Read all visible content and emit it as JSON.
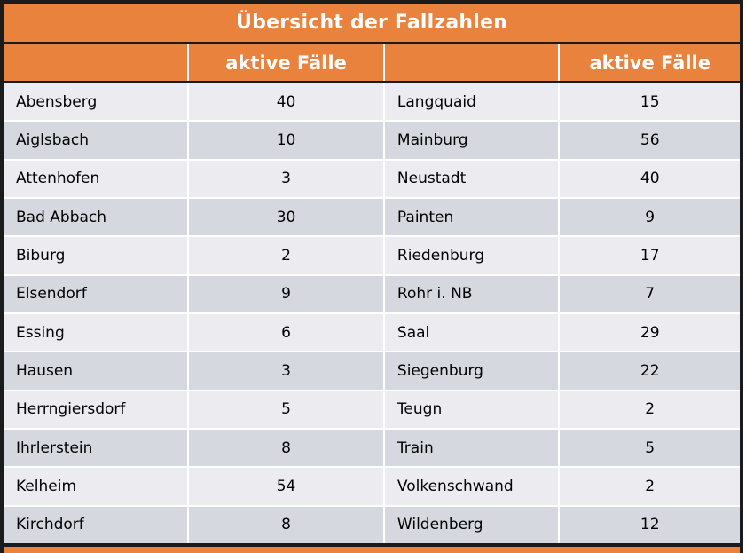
{
  "title": "Übersicht der Fallzahlen",
  "header": {
    "col1_label": "",
    "col2_label": "aktive Fälle",
    "col3_label": "",
    "col4_label": "aktive Fälle"
  },
  "chart_data": {
    "type": "table",
    "title": "Übersicht der Fallzahlen",
    "columns": [
      "",
      "aktive Fälle",
      "",
      "aktive Fälle"
    ],
    "rows": [
      [
        "Abensberg",
        40,
        "Langquaid",
        15
      ],
      [
        "Aiglsbach",
        10,
        "Mainburg",
        56
      ],
      [
        "Attenhofen",
        3,
        "Neustadt",
        40
      ],
      [
        "Bad Abbach",
        30,
        "Painten",
        9
      ],
      [
        "Biburg",
        2,
        "Riedenburg",
        17
      ],
      [
        "Elsendorf",
        9,
        "Rohr i. NB",
        7
      ],
      [
        "Essing",
        6,
        "Saal",
        29
      ],
      [
        "Hausen",
        3,
        "Siegenburg",
        22
      ],
      [
        "Herrngiersdorf",
        5,
        "Teugn",
        2
      ],
      [
        "Ihrlerstein",
        8,
        "Train",
        5
      ],
      [
        "Kelheim",
        54,
        "Volkenschwand",
        2
      ],
      [
        "Kirchdorf",
        8,
        "Wildenberg",
        12
      ]
    ],
    "layout": {
      "column_pairs": 2,
      "row_striping": [
        "light",
        "dark"
      ],
      "grid": "white dividers between cells and rows"
    }
  },
  "colors": {
    "accent_orange": "#E8823C",
    "row_light": "#EBEBF0",
    "row_dark": "#D6D8DF",
    "border_black": "#1B1B1B",
    "divider_white": "#FFFFFF",
    "header_text": "#FFFFFF",
    "body_text": "#000000"
  }
}
